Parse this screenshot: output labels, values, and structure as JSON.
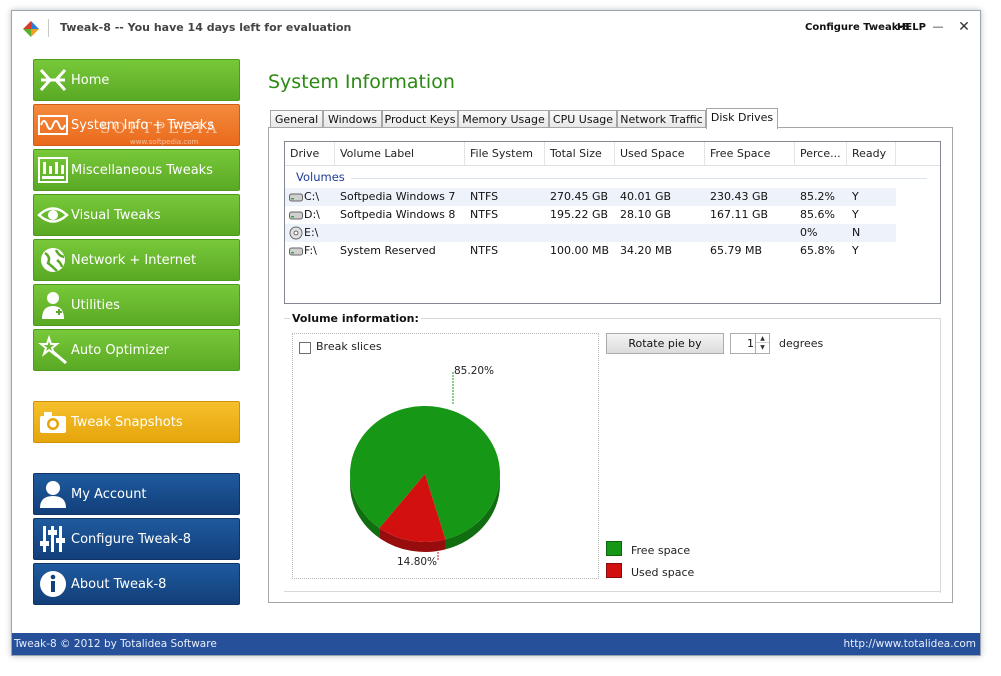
{
  "titlebar": {
    "title": "Tweak-8 -- You have 14 days left for evaluation",
    "configure_label": "Configure Tweak-8",
    "help_label": "HELP",
    "minimize_glyph": "—",
    "close_glyph": "✕"
  },
  "sidebar": {
    "items": [
      {
        "label": "Home",
        "icon": "home-icon",
        "color": "#66b52e"
      },
      {
        "label": "System Info + Tweaks",
        "icon": "waveform-icon",
        "color": "#ef7a2c"
      },
      {
        "label": "Miscellaneous Tweaks",
        "icon": "equalizer-icon",
        "color": "#66b52e"
      },
      {
        "label": "Visual Tweaks",
        "icon": "eye-icon",
        "color": "#66b52e"
      },
      {
        "label": "Network + Internet",
        "icon": "globe-icon",
        "color": "#66b52e"
      },
      {
        "label": "Utilities",
        "icon": "doctor-icon",
        "color": "#66b52e"
      },
      {
        "label": "Auto Optimizer",
        "icon": "magic-wand-icon",
        "color": "#66b52e"
      },
      {
        "label": "Tweak Snapshots",
        "icon": "camera-icon",
        "color": "#eeb21a"
      },
      {
        "label": "My Account",
        "icon": "user-icon",
        "color": "#184c8c"
      },
      {
        "label": "Configure Tweak-8",
        "icon": "sliders-icon",
        "color": "#184c8c"
      },
      {
        "label": "About Tweak-8",
        "icon": "info-icon",
        "color": "#184c8c"
      }
    ],
    "watermark": "SOFTPEDIA",
    "watermark_sub": "www.softpedia.com"
  },
  "main": {
    "page_title": "System Information",
    "tabs": [
      {
        "label": "General"
      },
      {
        "label": "Windows"
      },
      {
        "label": "Product Keys"
      },
      {
        "label": "Memory Usage"
      },
      {
        "label": "CPU Usage"
      },
      {
        "label": "Network Traffic"
      },
      {
        "label": "Disk Drives"
      }
    ],
    "active_tab": "Disk Drives",
    "drives_table": {
      "columns": [
        "Drive",
        "Volume Label",
        "File System",
        "Total Size",
        "Used Space",
        "Free Space",
        "Perce...",
        "Ready"
      ],
      "group_label": "Volumes",
      "rows": [
        {
          "drive": "C:\\",
          "label": "Softpedia Windows 7",
          "fs": "NTFS",
          "total": "270.45 GB",
          "used": "40.01 GB",
          "free": "230.43 GB",
          "percent": "85.2%",
          "ready": "Y",
          "icon": "hard-drive-icon"
        },
        {
          "drive": "D:\\",
          "label": "Softpedia Windows 8",
          "fs": "NTFS",
          "total": "195.22 GB",
          "used": "28.10 GB",
          "free": "167.11 GB",
          "percent": "85.6%",
          "ready": "Y",
          "icon": "hard-drive-icon"
        },
        {
          "drive": "E:\\",
          "label": "",
          "fs": "",
          "total": "",
          "used": "",
          "free": "",
          "percent": "0%",
          "ready": "N",
          "icon": "optical-drive-icon"
        },
        {
          "drive": "F:\\",
          "label": "System Reserved",
          "fs": "NTFS",
          "total": "100.00 MB",
          "used": "34.20 MB",
          "free": "65.79 MB",
          "percent": "65.8%",
          "ready": "Y",
          "icon": "hard-drive-icon"
        }
      ]
    },
    "volume_info": {
      "group_title": "Volume information:",
      "break_slices_label": "Break slices",
      "break_slices_checked": false,
      "rotate_button_label": "Rotate pie by",
      "rotate_value": "1",
      "degrees_label": "degrees",
      "legend": [
        {
          "label": "Free space",
          "color": "#169816"
        },
        {
          "label": "Used space",
          "color": "#d21010"
        }
      ]
    }
  },
  "chart_data": {
    "type": "pie",
    "slices": [
      {
        "name": "Free space",
        "value": 85.2,
        "label": "85.20%",
        "color": "#169816"
      },
      {
        "name": "Used space",
        "value": 14.8,
        "label": "14.80%",
        "color": "#d21010"
      }
    ],
    "style": "3d-tilted"
  },
  "statusbar": {
    "left": "Tweak-8 © 2012 by Totalidea Software",
    "right": "http://www.totalidea.com"
  }
}
